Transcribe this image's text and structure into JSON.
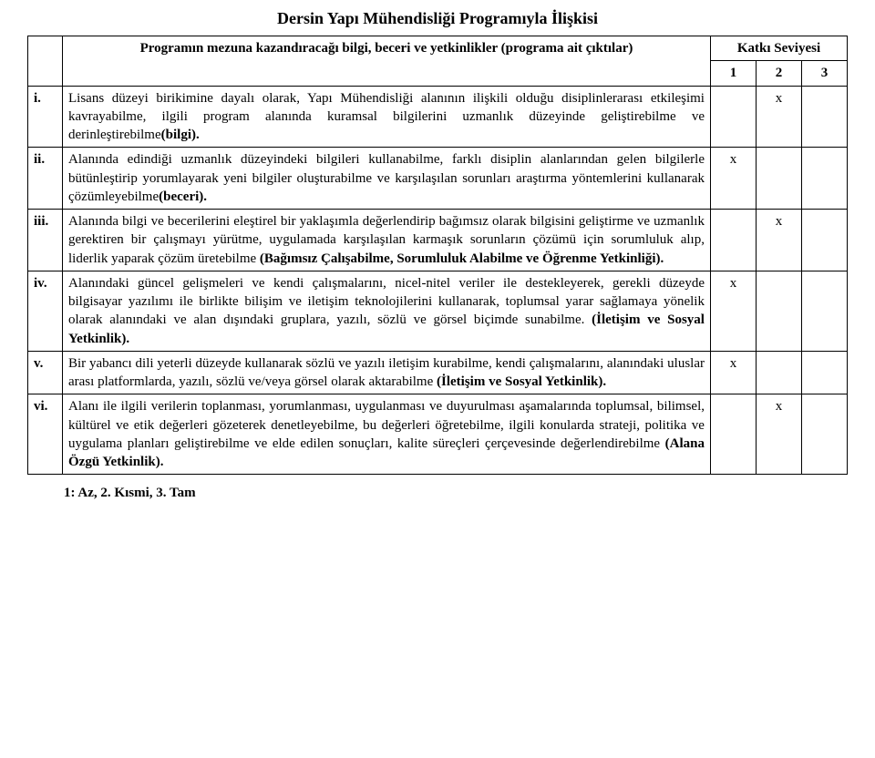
{
  "title": "Dersin Yapı Mühendisliği Programıyla İlişkisi",
  "header": {
    "program_outcomes": "Programın mezuna kazandıracağı bilgi, beceri ve yetkinlikler (programa ait çıktılar)",
    "katki": "Katkı Seviyesi",
    "level1": "1",
    "level2": "2",
    "level3": "3"
  },
  "rows": {
    "r1": {
      "num": "i.",
      "text_pre": "Lisans düzeyi birikimine dayalı olarak, Yapı Mühendisliği alanının ilişkili olduğu disiplinlerarası etkileşimi kavrayabilme, ilgili program alanında kuramsal bilgilerini uzmanlık düzeyinde geliştirebilme ve derinleştirebilme",
      "text_bold": "(bilgi).",
      "c1": "",
      "c2": "x",
      "c3": ""
    },
    "r2": {
      "num": "ii.",
      "text_pre": "Alanında edindiği uzmanlık düzeyindeki bilgileri kullanabilme, farklı disiplin alanlarından gelen bilgilerle bütünleştirip yorumlayarak yeni bilgiler oluşturabilme ve karşılaşılan sorunları araştırma yöntemlerini kullanarak çözümleyebilme",
      "text_bold": "(beceri).",
      "c1": "x",
      "c2": "",
      "c3": ""
    },
    "r3": {
      "num": "iii.",
      "text_pre": "Alanında bilgi ve becerilerini eleştirel bir yaklaşımla değerlendirip bağımsız olarak bilgisini geliştirme ve uzmanlık gerektiren bir çalışmayı yürütme, uygulamada karşılaşılan karmaşık sorunların çözümü için sorumluluk alıp, liderlik yaparak çözüm üretebilme ",
      "text_bold": "(Bağımsız Çalışabilme, Sorumluluk Alabilme ve Öğrenme Yetkinliği).",
      "c1": "",
      "c2": "x",
      "c3": ""
    },
    "r4": {
      "num": "iv.",
      "text_pre": "Alanındaki güncel gelişmeleri ve kendi çalışmalarını, nicel-nitel veriler ile destekleyerek, gerekli düzeyde bilgisayar yazılımı ile birlikte bilişim ve iletişim teknolojilerini kullanarak, toplumsal yarar sağlamaya yönelik olarak alanındaki ve alan dışındaki gruplara, yazılı, sözlü ve görsel biçimde sunabilme. ",
      "text_bold": "(İletişim ve Sosyal Yetkinlik).",
      "c1": "x",
      "c2": "",
      "c3": ""
    },
    "r5": {
      "num": "v.",
      "text_pre": "Bir yabancı dili yeterli düzeyde kullanarak sözlü ve yazılı iletişim kurabilme, kendi çalışmalarını, alanındaki uluslar arası platformlarda, yazılı, sözlü ve/veya görsel olarak aktarabilme ",
      "text_bold": "(İletişim ve Sosyal Yetkinlik).",
      "c1": "x",
      "c2": "",
      "c3": ""
    },
    "r6": {
      "num": "vi.",
      "text_pre": "Alanı ile ilgili verilerin toplanması, yorumlanması, uygulanması ve duyurulması aşamalarında toplumsal, bilimsel, kültürel ve etik değerleri gözeterek denetleyebilme, bu değerleri öğretebilme, ilgili konularda strateji, politika ve uygulama planları geliştirebilme ve elde edilen sonuçları, kalite süreçleri çerçevesinde değerlendirebilme ",
      "text_bold": "(Alana Özgü Yetkinlik).",
      "c1": "",
      "c2": "x",
      "c3": ""
    }
  },
  "footer": "1: Az,  2. Kısmi,  3. Tam"
}
